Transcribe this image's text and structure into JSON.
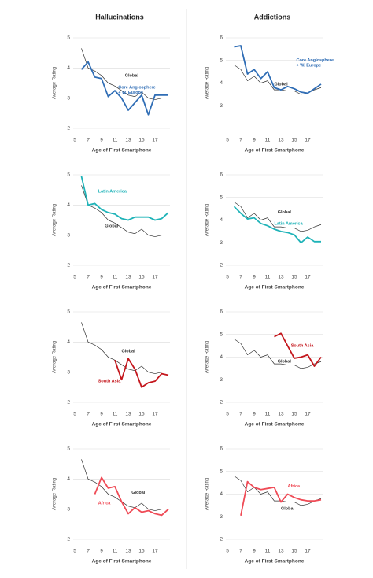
{
  "column_titles": [
    "Hallucinations",
    "Addictions"
  ],
  "chart_data": [
    {
      "type": "line",
      "x_label": "Age of First Smartphone",
      "y_label": "Average Rating",
      "x": [
        6,
        7,
        8,
        9,
        10,
        11,
        12,
        13,
        14,
        15,
        16,
        17,
        18,
        19
      ],
      "xlim": [
        5,
        19
      ],
      "xticks": [
        5,
        7,
        9,
        11,
        13,
        15,
        17
      ],
      "ylim": [
        2,
        5
      ],
      "yticks": [
        2,
        3,
        4,
        5
      ],
      "grid": true,
      "series": [
        {
          "name": "Global",
          "color": "#333333",
          "values": [
            4.65,
            4.0,
            3.9,
            3.75,
            3.5,
            3.4,
            3.25,
            3.1,
            3.05,
            3.2,
            3.0,
            2.95,
            3.0,
            3.0
          ]
        },
        {
          "name": "Core Anglosphere + W. Europe",
          "color": "#2f6db5",
          "values": [
            3.95,
            4.2,
            3.7,
            3.65,
            3.05,
            3.25,
            3.0,
            2.6,
            2.85,
            3.1,
            2.45,
            3.1,
            3.1,
            3.1
          ]
        }
      ]
    },
    {
      "type": "line",
      "x_label": "Age of First Smartphone",
      "y_label": "Average Rating",
      "x": [
        6,
        7,
        8,
        9,
        10,
        11,
        12,
        13,
        14,
        15,
        16,
        17,
        18,
        19
      ],
      "xlim": [
        5,
        19
      ],
      "xticks": [
        5,
        7,
        9,
        11,
        13,
        15,
        17
      ],
      "ylim": [
        2,
        6
      ],
      "yticks": [
        3,
        4,
        5,
        6
      ],
      "grid": true,
      "series": [
        {
          "name": "Global",
          "color": "#333333",
          "values": [
            4.8,
            4.6,
            4.1,
            4.3,
            4.0,
            4.1,
            3.7,
            3.7,
            3.65,
            3.65,
            3.5,
            3.55,
            3.7,
            3.8
          ]
        },
        {
          "name": "Core Anglosphere + W. Europe",
          "color": "#2f6db5",
          "values": [
            5.6,
            5.65,
            4.4,
            4.6,
            4.2,
            4.5,
            3.8,
            3.7,
            3.85,
            3.75,
            3.6,
            3.55,
            3.75,
            3.95
          ]
        }
      ]
    },
    {
      "type": "line",
      "x_label": "Age of First Smartphone",
      "y_label": "Average Rating",
      "x": [
        6,
        7,
        8,
        9,
        10,
        11,
        12,
        13,
        14,
        15,
        16,
        17,
        18,
        19
      ],
      "xlim": [
        5,
        19
      ],
      "xticks": [
        5,
        7,
        9,
        11,
        13,
        15,
        17
      ],
      "ylim": [
        2,
        5
      ],
      "yticks": [
        2,
        3,
        4,
        5
      ],
      "grid": true,
      "series": [
        {
          "name": "Global",
          "color": "#333333",
          "values": [
            4.65,
            4.0,
            3.9,
            3.75,
            3.5,
            3.4,
            3.25,
            3.1,
            3.05,
            3.2,
            3.0,
            2.95,
            3.0,
            3.0
          ]
        },
        {
          "name": "Latin America",
          "color": "#1fb3b8",
          "values": [
            4.95,
            4.0,
            4.05,
            3.85,
            3.75,
            3.7,
            3.55,
            3.5,
            3.6,
            3.6,
            3.6,
            3.5,
            3.55,
            3.75
          ]
        }
      ]
    },
    {
      "type": "line",
      "x_label": "Age of First Smartphone",
      "y_label": "Average Rating",
      "x": [
        6,
        7,
        8,
        9,
        10,
        11,
        12,
        13,
        14,
        15,
        16,
        17,
        18,
        19
      ],
      "xlim": [
        5,
        19
      ],
      "xticks": [
        5,
        7,
        9,
        11,
        13,
        15,
        17
      ],
      "ylim": [
        2,
        6
      ],
      "yticks": [
        2,
        3,
        4,
        5,
        6
      ],
      "grid": true,
      "series": [
        {
          "name": "Global",
          "color": "#333333",
          "values": [
            4.8,
            4.6,
            4.1,
            4.3,
            4.0,
            4.1,
            3.7,
            3.7,
            3.65,
            3.65,
            3.5,
            3.55,
            3.7,
            3.8
          ]
        },
        {
          "name": "Latin America",
          "color": "#1fb3b8",
          "values": [
            4.6,
            4.3,
            4.05,
            4.1,
            3.85,
            3.75,
            3.6,
            3.5,
            3.45,
            3.35,
            3.0,
            3.25,
            3.05,
            3.05
          ]
        }
      ]
    },
    {
      "type": "line",
      "x_label": "Age of First Smartphone",
      "y_label": "Average Rating",
      "x": [
        6,
        7,
        8,
        9,
        10,
        11,
        12,
        13,
        14,
        15,
        16,
        17,
        18,
        19
      ],
      "xlim": [
        5,
        19
      ],
      "xticks": [
        5,
        7,
        9,
        11,
        13,
        15,
        17
      ],
      "ylim": [
        2,
        5
      ],
      "yticks": [
        2,
        3,
        4,
        5
      ],
      "grid": true,
      "series": [
        {
          "name": "Global",
          "color": "#333333",
          "values": [
            4.65,
            4.0,
            3.9,
            3.75,
            3.5,
            3.4,
            3.25,
            3.1,
            3.05,
            3.2,
            3.0,
            2.95,
            3.0,
            3.0
          ]
        },
        {
          "name": "South Asia",
          "color": "#c4161c",
          "values": [
            null,
            null,
            null,
            null,
            null,
            3.4,
            2.75,
            3.45,
            3.1,
            2.5,
            2.65,
            2.7,
            2.95,
            2.9
          ]
        }
      ]
    },
    {
      "type": "line",
      "x_label": "Age of First Smartphone",
      "y_label": "Average Rating",
      "x": [
        6,
        7,
        8,
        9,
        10,
        11,
        12,
        13,
        14,
        15,
        16,
        17,
        18,
        19
      ],
      "xlim": [
        5,
        19
      ],
      "xticks": [
        5,
        7,
        9,
        11,
        13,
        15,
        17
      ],
      "ylim": [
        2,
        6
      ],
      "yticks": [
        2,
        3,
        4,
        5,
        6
      ],
      "grid": true,
      "series": [
        {
          "name": "Global",
          "color": "#333333",
          "values": [
            4.8,
            4.6,
            4.1,
            4.3,
            4.0,
            4.1,
            3.7,
            3.7,
            3.65,
            3.65,
            3.5,
            3.55,
            3.7,
            3.8
          ]
        },
        {
          "name": "South Asia",
          "color": "#c4161c",
          "values": [
            null,
            null,
            null,
            null,
            null,
            null,
            4.9,
            5.05,
            4.5,
            3.95,
            4.0,
            4.1,
            3.6,
            4.0
          ]
        }
      ]
    },
    {
      "type": "line",
      "x_label": "Age of First Smartphone",
      "y_label": "Average Rating",
      "x": [
        6,
        7,
        8,
        9,
        10,
        11,
        12,
        13,
        14,
        15,
        16,
        17,
        18,
        19
      ],
      "xlim": [
        5,
        19
      ],
      "xticks": [
        5,
        7,
        9,
        11,
        13,
        15,
        17
      ],
      "ylim": [
        2,
        5
      ],
      "yticks": [
        2,
        3,
        4,
        5
      ],
      "grid": true,
      "series": [
        {
          "name": "Global",
          "color": "#333333",
          "values": [
            4.65,
            4.0,
            3.9,
            3.75,
            3.5,
            3.4,
            3.25,
            3.1,
            3.05,
            3.2,
            3.0,
            2.95,
            3.0,
            3.0
          ]
        },
        {
          "name": "Africa",
          "color": "#ef4b56",
          "values": [
            null,
            null,
            3.5,
            4.05,
            3.7,
            3.75,
            3.25,
            2.85,
            3.05,
            2.9,
            2.95,
            2.85,
            2.8,
            3.0
          ]
        }
      ]
    },
    {
      "type": "line",
      "x_label": "Age of First Smartphone",
      "y_label": "Average Rating",
      "x": [
        6,
        7,
        8,
        9,
        10,
        11,
        12,
        13,
        14,
        15,
        16,
        17,
        18,
        19
      ],
      "xlim": [
        5,
        19
      ],
      "xticks": [
        5,
        7,
        9,
        11,
        13,
        15,
        17
      ],
      "ylim": [
        2,
        6
      ],
      "yticks": [
        2,
        3,
        4,
        5,
        6
      ],
      "grid": true,
      "series": [
        {
          "name": "Global",
          "color": "#333333",
          "values": [
            4.8,
            4.6,
            4.1,
            4.3,
            4.0,
            4.1,
            3.7,
            3.7,
            3.65,
            3.65,
            3.5,
            3.55,
            3.7,
            3.8
          ]
        },
        {
          "name": "Africa",
          "color": "#ef4b56",
          "values": [
            null,
            3.05,
            4.55,
            4.3,
            4.2,
            4.25,
            4.3,
            3.65,
            4.0,
            3.85,
            3.75,
            3.7,
            3.7,
            3.75
          ]
        }
      ]
    }
  ]
}
